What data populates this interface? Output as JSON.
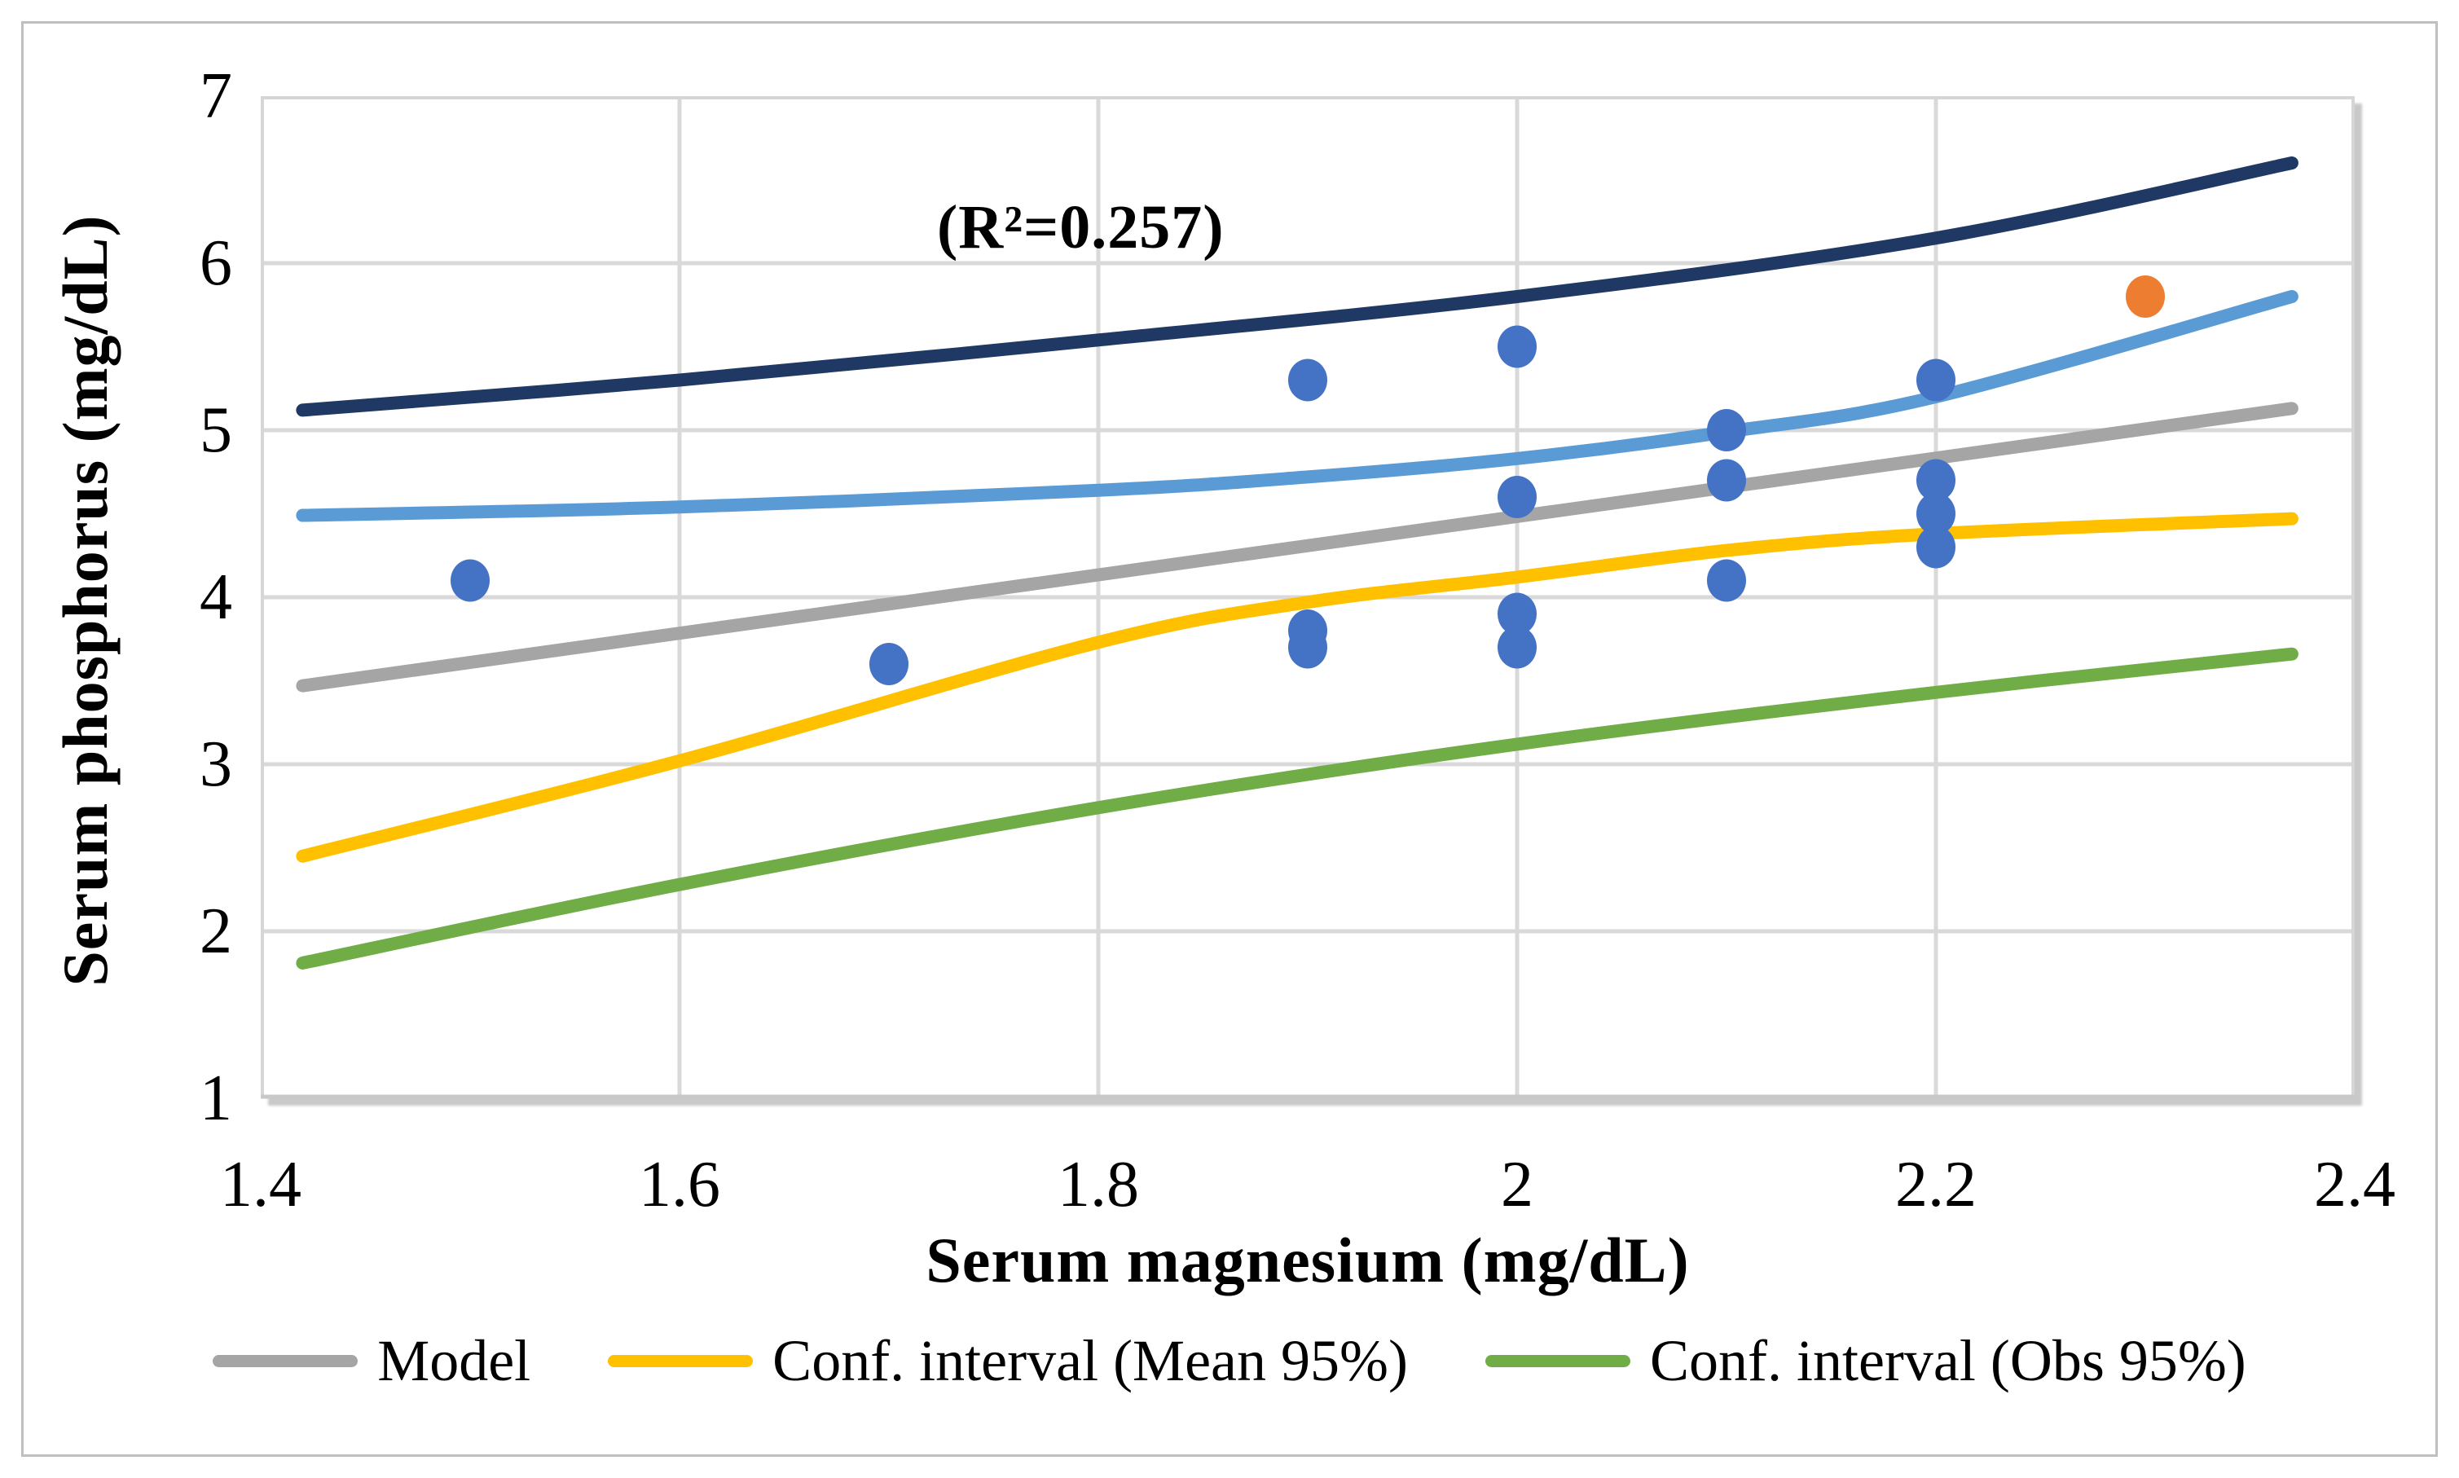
{
  "figure": {
    "border_color": "#bfbfbf",
    "background": "#ffffff"
  },
  "chart_data": {
    "type": "scatter",
    "title": "",
    "xlabel": "Serum magnesium (mg/dL)",
    "ylabel": "Serum phosphorus (mg/dL)",
    "annotation": "(R²=0.257)",
    "xlim": [
      1.4,
      2.4
    ],
    "ylim": [
      1,
      7
    ],
    "x_ticks": [
      1.4,
      1.6,
      1.8,
      2,
      2.2,
      2.4
    ],
    "x_tick_labels": [
      "1.4",
      "1.6",
      "1.8",
      "2",
      "2.2",
      "2.4"
    ],
    "y_ticks": [
      1,
      2,
      3,
      4,
      5,
      6,
      7
    ],
    "y_tick_labels": [
      "1",
      "2",
      "3",
      "4",
      "5",
      "6",
      "7"
    ],
    "grid": true,
    "grid_color": "#d9d9d9",
    "axis_color": "#c8c8c8",
    "scatter": {
      "name": "observations",
      "color": "#4472c4",
      "data": [
        [
          1.5,
          4.1
        ],
        [
          1.7,
          3.6
        ],
        [
          1.9,
          5.3
        ],
        [
          1.9,
          3.8
        ],
        [
          1.9,
          3.7
        ],
        [
          2.0,
          5.5
        ],
        [
          2.0,
          4.6
        ],
        [
          2.0,
          3.9
        ],
        [
          2.0,
          3.7
        ],
        [
          2.1,
          5.0
        ],
        [
          2.1,
          4.7
        ],
        [
          2.1,
          4.1
        ],
        [
          2.2,
          5.3
        ],
        [
          2.2,
          4.7
        ],
        [
          2.2,
          4.5
        ],
        [
          2.2,
          4.3
        ]
      ]
    },
    "highlight": {
      "name": "highlighted observation",
      "color": "#ed7d31",
      "data": [
        [
          2.3,
          5.8
        ]
      ]
    },
    "series": [
      {
        "name": "Conf. interval upper bound (Obs 95%)",
        "color": "#1f3864",
        "points": [
          [
            1.42,
            5.12
          ],
          [
            1.6,
            5.3
          ],
          [
            1.8,
            5.54
          ],
          [
            2.0,
            5.8
          ],
          [
            2.2,
            6.15
          ],
          [
            2.37,
            6.6
          ]
        ]
      },
      {
        "name": "Conf. interval upper bound (Mean 95%)",
        "color": "#5b9bd5",
        "points": [
          [
            1.42,
            4.49
          ],
          [
            1.6,
            4.54
          ],
          [
            1.8,
            4.64
          ],
          [
            1.9,
            4.72
          ],
          [
            2.0,
            4.83
          ],
          [
            2.1,
            4.99
          ],
          [
            2.2,
            5.2
          ],
          [
            2.37,
            5.8
          ]
        ]
      },
      {
        "name": "Model",
        "color": "#a5a5a5",
        "points": [
          [
            1.42,
            3.47
          ],
          [
            2.37,
            5.13
          ]
        ]
      },
      {
        "name": "Conf. interval (Mean 95%)",
        "color": "#ffc000",
        "points": [
          [
            1.42,
            2.45
          ],
          [
            1.6,
            3.02
          ],
          [
            1.8,
            3.73
          ],
          [
            1.9,
            3.97
          ],
          [
            2.0,
            4.12
          ],
          [
            2.1,
            4.28
          ],
          [
            2.2,
            4.38
          ],
          [
            2.37,
            4.47
          ]
        ]
      },
      {
        "name": "Conf. interval (Obs 95%)",
        "color": "#70ad47",
        "points": [
          [
            1.42,
            1.81
          ],
          [
            1.6,
            2.28
          ],
          [
            1.8,
            2.74
          ],
          [
            2.0,
            3.12
          ],
          [
            2.2,
            3.43
          ],
          [
            2.37,
            3.66
          ]
        ]
      }
    ],
    "legend_position": "bottom",
    "legend": [
      {
        "label": "Model",
        "color": "#a5a5a5"
      },
      {
        "label": "Conf. interval (Mean 95%)",
        "color": "#ffc000"
      },
      {
        "label": "Conf. interval (Obs 95%)",
        "color": "#70ad47"
      }
    ]
  }
}
